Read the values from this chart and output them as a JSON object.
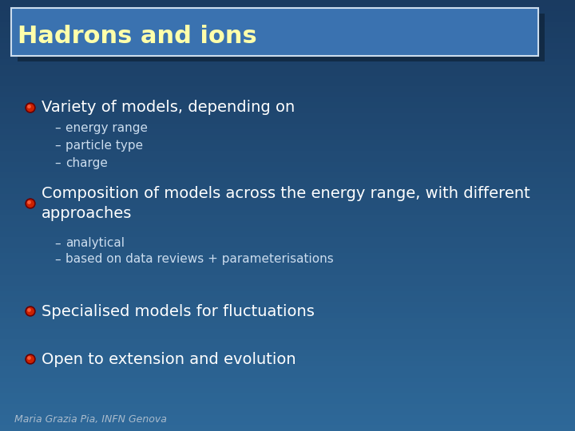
{
  "title": "Hadrons and ions",
  "title_color": "#FFFFAA",
  "title_box_bg": "#3A72B0",
  "title_box_edge": "#CCDDEE",
  "bg_color_top": "#1A3A60",
  "bg_color_bottom": "#2A5A90",
  "bullet_outer": "#6B0000",
  "bullet_inner": "#CC2200",
  "bullet_hi": "#FF6644",
  "text_color": "#FFFFFF",
  "sub_text_color": "#CCDDEE",
  "footer_color": "#AABBCC",
  "footer_text": "Maria Grazia Pia, INFN Genova",
  "title_fontsize": 22,
  "main_fontsize": 14,
  "sub_fontsize": 11,
  "footer_fontsize": 9,
  "bullets": [
    {
      "text": "Variety of models, depending on",
      "subitems": [
        "energy range",
        "particle type",
        "charge"
      ]
    },
    {
      "text": "Composition of models across the energy range, with different\napproaches",
      "subitems": [
        "analytical",
        "based on data reviews + parameterisations"
      ]
    },
    {
      "text": "Specialised models for fluctuations",
      "subitems": []
    },
    {
      "text": "Open to extension and evolution",
      "subitems": []
    }
  ]
}
